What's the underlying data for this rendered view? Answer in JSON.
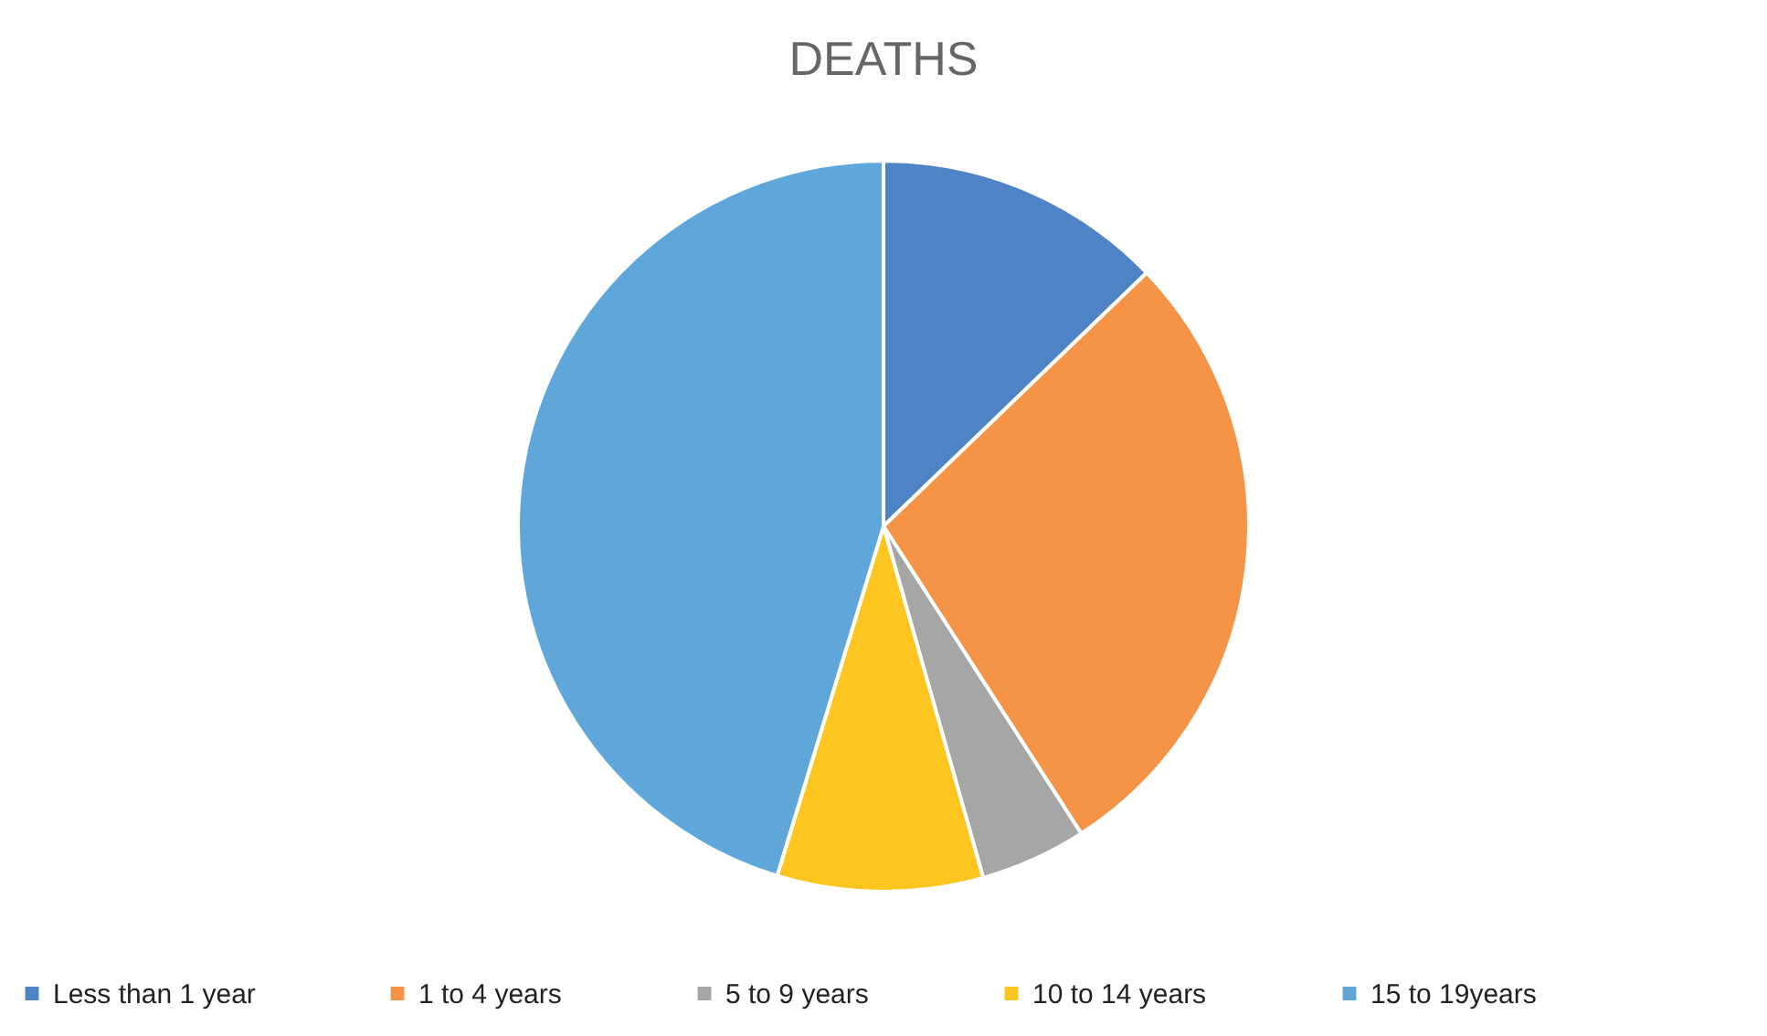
{
  "chart_data": {
    "type": "pie",
    "title": "DEATHS",
    "categories": [
      "Less than 1 year",
      "1 to 4 years",
      "5 to 9 years",
      "10 to 14 years",
      "15 to 19years"
    ],
    "values": [
      12.8,
      28.1,
      4.7,
      9.1,
      45.3
    ],
    "colors": [
      "#4e83c5",
      "#f59446",
      "#a5a6a6",
      "#fcc520",
      "#5fa7db"
    ],
    "legend": "bottom"
  }
}
